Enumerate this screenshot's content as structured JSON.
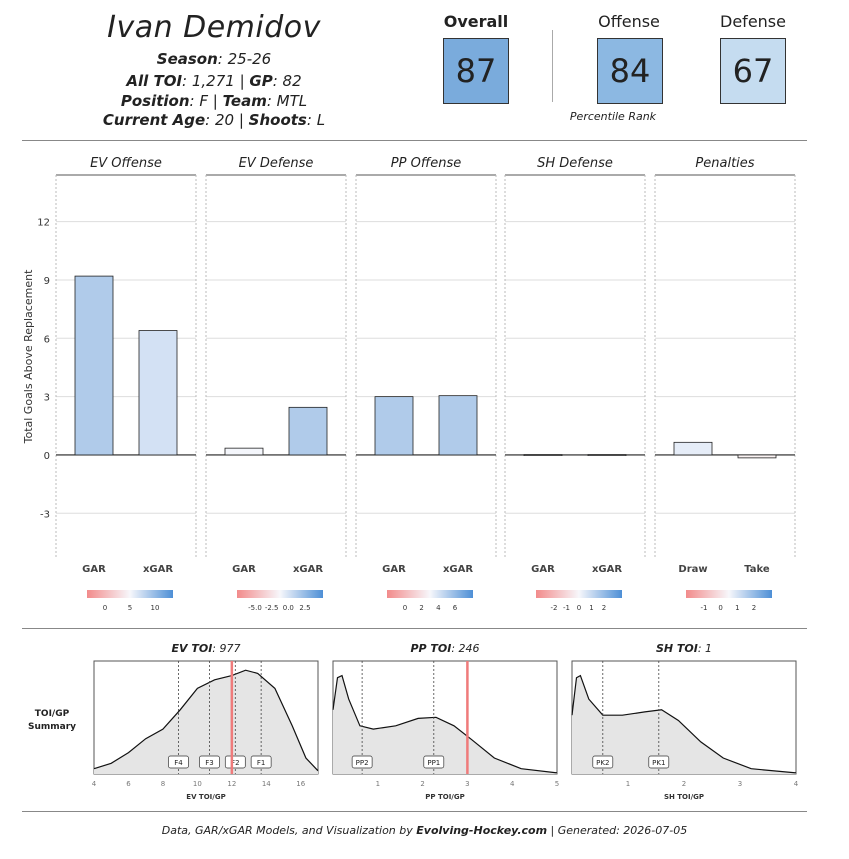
{
  "header": {
    "player_name": "Ivan Demidov",
    "season_label": "Season",
    "season_value": ": 25-26",
    "toi_label": "All TOI",
    "toi_value": ": 1,271 | ",
    "gp_label": "GP",
    "gp_value": ": 82",
    "position_label": "Position",
    "position_value": ": F | ",
    "team_label": "Team",
    "team_value": ": MTL",
    "age_label": "Current Age",
    "age_value": ": 20 | ",
    "shoots_label": "Shoots",
    "shoots_value": ": L"
  },
  "ratings": {
    "overall_label": "Overall",
    "overall_value": "87",
    "offense_label": "Offense",
    "offense_value": "84",
    "defense_label": "Defense",
    "defense_value": "67",
    "percentile_caption": "Percentile Rank",
    "colors": {
      "overall": "#7aabdc",
      "offense": "#8cb8e2",
      "defense": "#c5dcf0"
    }
  },
  "chart_data": [
    {
      "type": "bar",
      "ylabel": "Total Goals Above Replacement",
      "ylim": [
        -5.3,
        14.4
      ],
      "yticks": [
        -3,
        0,
        3,
        6,
        9,
        12
      ],
      "grid": true,
      "panels": [
        {
          "title": "EV Offense",
          "categories": [
            "GAR",
            "xGAR"
          ],
          "values": [
            9.2,
            6.4
          ],
          "colors": [
            "#b0cbea",
            "#d3e1f4"
          ],
          "legend": {
            "ticks": [
              "0",
              "5",
              "10"
            ]
          }
        },
        {
          "title": "EV Defense",
          "categories": [
            "GAR",
            "xGAR"
          ],
          "values": [
            0.35,
            2.45
          ],
          "colors": [
            "#f4f6fb",
            "#b0cbea"
          ],
          "legend": {
            "ticks": [
              "-5.0",
              "-2.5",
              "0.0",
              "2.5"
            ]
          }
        },
        {
          "title": "PP Offense",
          "categories": [
            "GAR",
            "xGAR"
          ],
          "values": [
            3.0,
            3.05
          ],
          "colors": [
            "#b0cbea",
            "#b0cbea"
          ],
          "legend": {
            "ticks": [
              "0",
              "2",
              "4",
              "6"
            ]
          }
        },
        {
          "title": "SH Defense",
          "categories": [
            "GAR",
            "xGAR"
          ],
          "values": [
            0.02,
            0.02
          ],
          "colors": [
            "#f4f6fb",
            "#f4f6fb"
          ],
          "legend": {
            "ticks": [
              "-2",
              "-1",
              "0",
              "1",
              "2"
            ]
          }
        },
        {
          "title": "Penalties",
          "categories": [
            "Draw",
            "Take"
          ],
          "values": [
            0.65,
            -0.15
          ],
          "colors": [
            "#e6edf8",
            "#fbf3f3"
          ],
          "legend": {
            "ticks": [
              "-1",
              "0",
              "1",
              "2"
            ]
          }
        }
      ]
    },
    {
      "type": "area",
      "side_label_1": "TOI/GP",
      "side_label_2": "Summary",
      "panels": [
        {
          "title_bold": "EV TOI",
          "title_rest": ": 977",
          "xlabel": "EV TOI/GP",
          "xlim": [
            4,
            17
          ],
          "xticks": [
            "4",
            "6",
            "8",
            "10",
            "12",
            "14",
            "16"
          ],
          "xtick_values": [
            4,
            6,
            8,
            10,
            12,
            14,
            16
          ],
          "player_value": 12.0,
          "markers": [
            {
              "label": "F4",
              "x": 8.9
            },
            {
              "label": "F3",
              "x": 10.7
            },
            {
              "label": "F2",
              "x": 12.2
            },
            {
              "label": "F1",
              "x": 13.7
            }
          ],
          "density": [
            [
              4,
              0.05
            ],
            [
              5,
              0.1
            ],
            [
              6,
              0.2
            ],
            [
              7,
              0.33
            ],
            [
              8,
              0.42
            ],
            [
              9,
              0.6
            ],
            [
              10,
              0.8
            ],
            [
              11,
              0.88
            ],
            [
              12,
              0.92
            ],
            [
              12.8,
              0.97
            ],
            [
              13.5,
              0.94
            ],
            [
              14.5,
              0.8
            ],
            [
              15.5,
              0.45
            ],
            [
              16.3,
              0.15
            ],
            [
              17,
              0.03
            ]
          ]
        },
        {
          "title_bold": "PP TOI",
          "title_rest": ": 246",
          "xlabel": "PP TOI/GP",
          "xlim": [
            0,
            5
          ],
          "xticks": [
            "1",
            "2",
            "3",
            "4",
            "5"
          ],
          "xtick_values": [
            1,
            2,
            3,
            4,
            5
          ],
          "player_value": 3.0,
          "markers": [
            {
              "label": "PP2",
              "x": 0.65
            },
            {
              "label": "PP1",
              "x": 2.25
            }
          ],
          "density": [
            [
              0,
              0.6
            ],
            [
              0.1,
              0.9
            ],
            [
              0.2,
              0.92
            ],
            [
              0.35,
              0.7
            ],
            [
              0.6,
              0.45
            ],
            [
              0.9,
              0.42
            ],
            [
              1.4,
              0.45
            ],
            [
              1.9,
              0.52
            ],
            [
              2.3,
              0.53
            ],
            [
              2.7,
              0.45
            ],
            [
              3.1,
              0.32
            ],
            [
              3.6,
              0.15
            ],
            [
              4.2,
              0.05
            ],
            [
              5,
              0.01
            ]
          ]
        },
        {
          "title_bold": "SH TOI",
          "title_rest": ": 1",
          "xlabel": "SH TOI/GP",
          "xlim": [
            0,
            4
          ],
          "xticks": [
            "1",
            "2",
            "3",
            "4"
          ],
          "xtick_values": [
            1,
            2,
            3,
            4
          ],
          "player_value": null,
          "markers": [
            {
              "label": "PK2",
              "x": 0.55
            },
            {
              "label": "PK1",
              "x": 1.55
            }
          ],
          "density": [
            [
              0,
              0.55
            ],
            [
              0.08,
              0.9
            ],
            [
              0.15,
              0.92
            ],
            [
              0.3,
              0.7
            ],
            [
              0.55,
              0.55
            ],
            [
              0.9,
              0.55
            ],
            [
              1.3,
              0.58
            ],
            [
              1.6,
              0.6
            ],
            [
              1.9,
              0.5
            ],
            [
              2.3,
              0.3
            ],
            [
              2.7,
              0.15
            ],
            [
              3.2,
              0.05
            ],
            [
              4,
              0.01
            ]
          ]
        }
      ]
    }
  ],
  "footer": {
    "prefix": "Data, GAR/xGAR Models, and Visualization by ",
    "brand": "Evolving-Hockey.com",
    "suffix": " | Generated: 2026-07-05"
  }
}
